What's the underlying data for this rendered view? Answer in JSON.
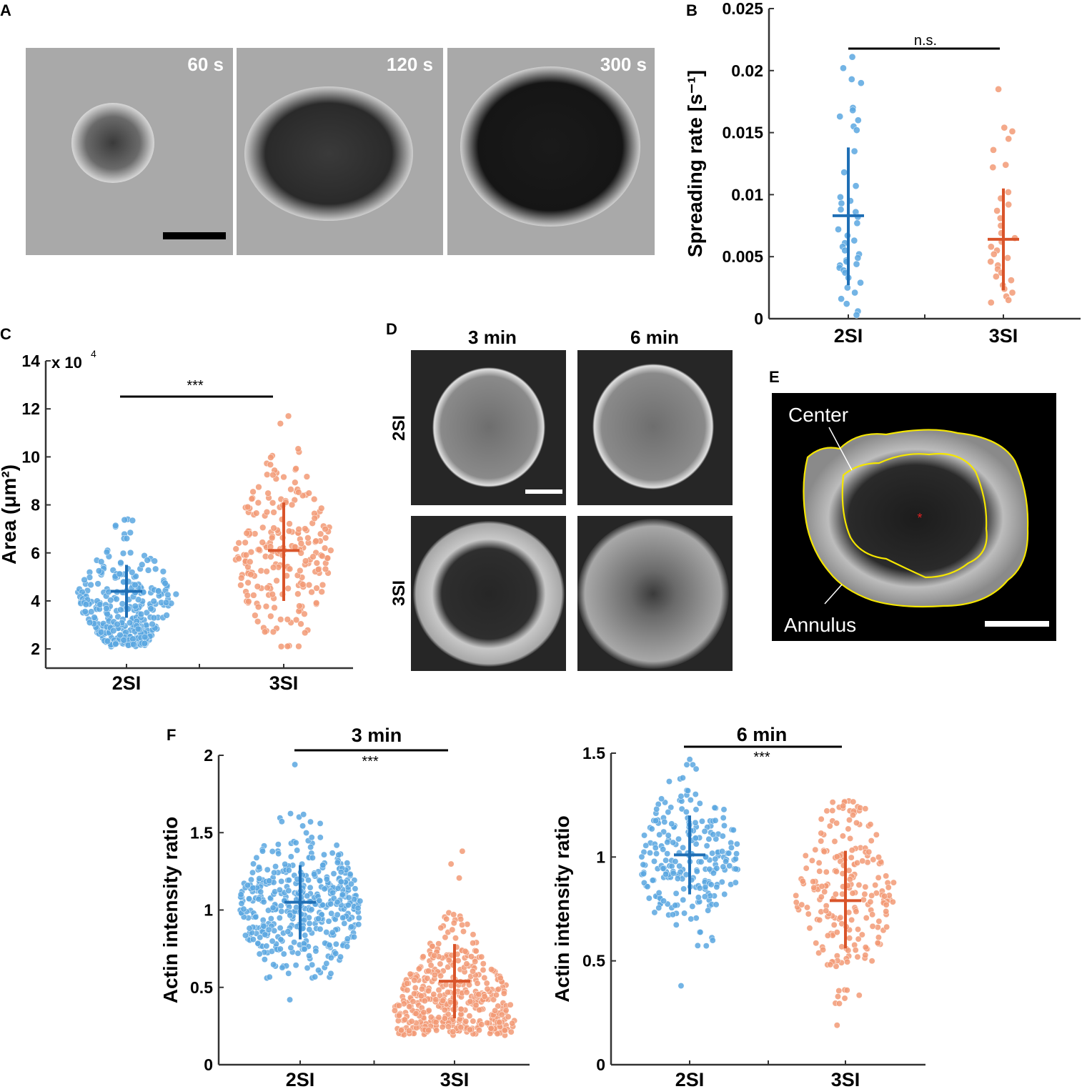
{
  "panels": {
    "A": {
      "label": "A",
      "frames": [
        "60 s",
        "120 s",
        "300 s"
      ]
    },
    "B": {
      "label": "B",
      "significance": "n.s."
    },
    "C": {
      "label": "C",
      "significance": "***",
      "yexp_base": "x 10",
      "yexp_pow": "4"
    },
    "D": {
      "label": "D",
      "cols": [
        "3 min",
        "6 min"
      ],
      "rows": [
        "2SI",
        "3SI"
      ]
    },
    "E": {
      "label": "E",
      "center": "Center",
      "annulus": "Annulus"
    },
    "F": {
      "label": "F",
      "left_title": "3 min",
      "right_title": "6 min",
      "significance": "***"
    }
  },
  "colors": {
    "s2": "#5aa7e0",
    "s2dark": "#1f6fb5",
    "s3": "#f29a76",
    "s3dark": "#d9542a"
  },
  "chart_data": [
    {
      "panel": "B",
      "type": "scatter",
      "categories": [
        "2SI",
        "3SI"
      ],
      "ylabel": "Spreading rate [s⁻¹]",
      "ylim": [
        0,
        0.025
      ],
      "yticks": [
        0,
        0.005,
        0.01,
        0.015,
        0.02,
        0.025
      ],
      "yticklabels": [
        "0",
        "0.005",
        "0.01",
        "0.015",
        "0.02",
        "0.025"
      ],
      "series": [
        {
          "category": "2SI",
          "mean": 0.0083,
          "sd_low": 0.0027,
          "sd_high": 0.0138,
          "values": [
            0.0211,
            0.0202,
            0.0193,
            0.019,
            0.017,
            0.0168,
            0.0163,
            0.016,
            0.0155,
            0.0152,
            0.0135,
            0.0118,
            0.0107,
            0.0098,
            0.0095,
            0.0093,
            0.0088,
            0.0086,
            0.0082,
            0.0077,
            0.0072,
            0.0067,
            0.0063,
            0.0061,
            0.0058,
            0.0055,
            0.0052,
            0.0049,
            0.0047,
            0.0046,
            0.0044,
            0.0043,
            0.0041,
            0.0039,
            0.0037,
            0.0033,
            0.0029,
            0.0025,
            0.0021,
            0.0016,
            0.0012,
            0.0006,
            0.0003
          ]
        },
        {
          "category": "3SI",
          "mean": 0.0064,
          "sd_low": 0.0023,
          "sd_high": 0.0105,
          "values": [
            0.0185,
            0.0154,
            0.0151,
            0.0145,
            0.0136,
            0.0124,
            0.0122,
            0.0102,
            0.0097,
            0.0092,
            0.0087,
            0.0081,
            0.0075,
            0.0069,
            0.0065,
            0.0062,
            0.0058,
            0.0055,
            0.0052,
            0.0049,
            0.0046,
            0.0043,
            0.004,
            0.0037,
            0.0034,
            0.0031,
            0.0027,
            0.0024,
            0.0021,
            0.0018,
            0.0015,
            0.0013
          ]
        }
      ]
    },
    {
      "panel": "C",
      "type": "scatter",
      "categories": [
        "2SI",
        "3SI"
      ],
      "ylabel": "Area (μm²)",
      "ylim": [
        1.2,
        14
      ],
      "yticks": [
        2,
        4,
        6,
        8,
        10,
        12,
        14
      ],
      "yticklabels": [
        "2",
        "4",
        "6",
        "8",
        "10",
        "12",
        "14"
      ],
      "series": [
        {
          "category": "2SI",
          "n": 330,
          "center": 4.2,
          "min": 2.1,
          "max": 7.4,
          "mean": 4.4,
          "sd_low": 3.3,
          "sd_high": 5.5
        },
        {
          "category": "3SI",
          "n": 230,
          "center": 6.0,
          "min": 2.1,
          "max": 11.7,
          "mean": 6.1,
          "sd_low": 4.0,
          "sd_high": 8.1
        }
      ]
    },
    {
      "panel": "F-left",
      "type": "scatter",
      "title": "3 min",
      "categories": [
        "2SI",
        "3SI"
      ],
      "ylabel": "Actin intensity ratio",
      "ylim": [
        0,
        2
      ],
      "yticks": [
        0,
        0.5,
        1,
        1.5,
        2
      ],
      "yticklabels": [
        "0",
        "0.5",
        "1",
        "1.5",
        "2"
      ],
      "series": [
        {
          "category": "2SI",
          "n": 460,
          "center": 1.02,
          "min": 0.42,
          "max": 1.94,
          "mean": 1.05,
          "sd_low": 0.81,
          "sd_high": 1.29
        },
        {
          "category": "3SI",
          "n": 430,
          "center": 0.33,
          "min": 0.19,
          "max": 1.38,
          "mean": 0.54,
          "sd_low": 0.3,
          "sd_high": 0.78
        }
      ]
    },
    {
      "panel": "F-right",
      "type": "scatter",
      "title": "6 min",
      "categories": [
        "2SI",
        "3SI"
      ],
      "ylabel": "Actin intensity ratio",
      "ylim": [
        0,
        1.5
      ],
      "yticks": [
        0,
        0.5,
        1,
        1.5
      ],
      "yticklabels": [
        "0",
        "0.5",
        "1",
        "1.5"
      ],
      "series": [
        {
          "category": "2SI",
          "n": 240,
          "center": 0.98,
          "min": 0.38,
          "max": 1.47,
          "mean": 1.01,
          "sd_low": 0.82,
          "sd_high": 1.2
        },
        {
          "category": "3SI",
          "n": 220,
          "center": 0.82,
          "min": 0.19,
          "max": 1.27,
          "mean": 0.79,
          "sd_low": 0.56,
          "sd_high": 1.03
        }
      ]
    }
  ]
}
